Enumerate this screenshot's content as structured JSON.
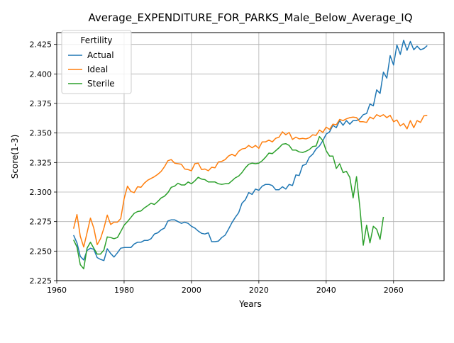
{
  "chart_data": {
    "type": "line",
    "title": "Average_EXPENDITURE_FOR_PARKS_Male_Below_Average_IQ",
    "xlabel": "Years",
    "ylabel": "Score(1-3)",
    "xlim": [
      1960,
      2075
    ],
    "ylim": [
      2.225,
      2.435
    ],
    "xticks": [
      1960,
      1980,
      2000,
      2020,
      2040,
      2060
    ],
    "xtick_labels": [
      "1960",
      "1980",
      "2000",
      "2020",
      "2040",
      "2060"
    ],
    "yticks": [
      2.225,
      2.25,
      2.275,
      2.3,
      2.325,
      2.35,
      2.375,
      2.4,
      2.425
    ],
    "ytick_labels": [
      "2.225",
      "2.250",
      "2.275",
      "2.300",
      "2.325",
      "2.350",
      "2.375",
      "2.400",
      "2.425"
    ],
    "grid": true,
    "legend": {
      "title": "Fertility",
      "position": "upper left"
    },
    "series": [
      {
        "name": "Actual",
        "color": "#1f77b4",
        "x": [
          1965,
          1966,
          1967,
          1968,
          1969,
          1970,
          1971,
          1972,
          1973,
          1974,
          1975,
          1976,
          1977,
          1978,
          1979,
          1980,
          1981,
          1982,
          1983,
          1984,
          1985,
          1986,
          1987,
          1988,
          1989,
          1990,
          1991,
          1992,
          1993,
          1994,
          1995,
          1996,
          1997,
          1998,
          1999,
          2000,
          2001,
          2002,
          2003,
          2004,
          2005,
          2006,
          2007,
          2008,
          2009,
          2010,
          2011,
          2012,
          2013,
          2014,
          2015,
          2016,
          2017,
          2018,
          2019,
          2020,
          2021,
          2022,
          2023,
          2024,
          2025,
          2026,
          2027,
          2028,
          2029,
          2030,
          2031,
          2032,
          2033,
          2034,
          2035,
          2036,
          2037,
          2038,
          2039,
          2040,
          2041,
          2042,
          2043,
          2044,
          2045,
          2046,
          2047,
          2048,
          2049,
          2050,
          2051,
          2052,
          2053,
          2054,
          2055,
          2056,
          2057,
          2058,
          2059,
          2060,
          2061,
          2062,
          2063,
          2064,
          2065,
          2066,
          2067,
          2068,
          2069,
          2070
        ],
        "y": [
          2.2635,
          2.257,
          2.2455,
          2.2425,
          2.2505,
          2.2525,
          2.2515,
          2.2445,
          2.243,
          2.242,
          2.252,
          2.248,
          2.245,
          2.2485,
          2.2525,
          2.253,
          2.253,
          2.253,
          2.256,
          2.2575,
          2.2575,
          2.259,
          2.259,
          2.2605,
          2.2645,
          2.2655,
          2.268,
          2.2695,
          2.2755,
          2.2765,
          2.2765,
          2.275,
          2.2735,
          2.2745,
          2.2735,
          2.271,
          2.2695,
          2.267,
          2.265,
          2.2645,
          2.2655,
          2.258,
          2.258,
          2.2585,
          2.2615,
          2.2635,
          2.2685,
          2.274,
          2.2785,
          2.2825,
          2.2905,
          2.2935,
          2.2995,
          2.298,
          2.3025,
          2.3015,
          2.305,
          2.3065,
          2.3065,
          2.3055,
          2.302,
          2.302,
          2.3045,
          2.3025,
          2.3065,
          2.3055,
          2.3145,
          2.314,
          2.3225,
          2.3235,
          2.3295,
          2.332,
          2.3365,
          2.339,
          2.3435,
          2.349,
          2.351,
          2.3565,
          2.3545,
          2.3605,
          2.3565,
          2.3605,
          2.3575,
          2.3605,
          2.3605,
          2.362,
          2.3655,
          2.3665,
          2.3745,
          2.373,
          2.3865,
          2.3835,
          2.4015,
          2.3965,
          2.4155,
          2.4075,
          2.4245,
          2.4165,
          2.4285,
          2.42,
          2.4275,
          2.4205,
          2.4235,
          2.4205,
          2.4215,
          2.424
        ]
      },
      {
        "name": "Ideal",
        "color": "#ff7f0e",
        "x": [
          1965,
          1966,
          1967,
          1968,
          1969,
          1970,
          1971,
          1972,
          1973,
          1974,
          1975,
          1976,
          1977,
          1978,
          1979,
          1980,
          1981,
          1982,
          1983,
          1984,
          1985,
          1986,
          1987,
          1988,
          1989,
          1990,
          1991,
          1992,
          1993,
          1994,
          1995,
          1996,
          1997,
          1998,
          1999,
          2000,
          2001,
          2002,
          2003,
          2004,
          2005,
          2006,
          2007,
          2008,
          2009,
          2010,
          2011,
          2012,
          2013,
          2014,
          2015,
          2016,
          2017,
          2018,
          2019,
          2020,
          2021,
          2022,
          2023,
          2024,
          2025,
          2026,
          2027,
          2028,
          2029,
          2030,
          2031,
          2032,
          2033,
          2034,
          2035,
          2036,
          2037,
          2038,
          2039,
          2040,
          2041,
          2042,
          2043,
          2044,
          2045,
          2046,
          2047,
          2048,
          2049,
          2050,
          2051,
          2052,
          2053,
          2054,
          2055,
          2056,
          2057,
          2058,
          2059,
          2060,
          2061,
          2062,
          2063,
          2064,
          2065,
          2066,
          2067,
          2068,
          2069,
          2070
        ],
        "y": [
          2.269,
          2.281,
          2.2625,
          2.2535,
          2.2655,
          2.278,
          2.2695,
          2.2555,
          2.2605,
          2.2695,
          2.2805,
          2.2725,
          2.2745,
          2.2745,
          2.2775,
          2.2945,
          2.305,
          2.3005,
          2.2995,
          2.3045,
          2.304,
          2.3075,
          2.31,
          2.3115,
          2.313,
          2.315,
          2.3175,
          2.3215,
          2.3265,
          2.3275,
          2.3245,
          2.324,
          2.3235,
          2.3195,
          2.319,
          2.318,
          2.324,
          2.3245,
          2.319,
          2.3195,
          2.318,
          2.321,
          2.3205,
          2.3255,
          2.326,
          2.3275,
          2.3305,
          2.332,
          2.3305,
          2.3345,
          2.3365,
          2.337,
          2.3395,
          2.3375,
          2.3395,
          2.337,
          2.3425,
          2.3425,
          2.344,
          2.3425,
          2.3455,
          2.3465,
          2.351,
          2.3485,
          2.3505,
          2.3445,
          2.3465,
          2.345,
          2.3455,
          2.345,
          2.346,
          2.3485,
          2.348,
          2.3525,
          2.3505,
          2.355,
          2.353,
          2.3575,
          2.357,
          2.3615,
          2.3605,
          2.362,
          2.363,
          2.3635,
          2.363,
          2.3595,
          2.3595,
          2.359,
          2.3635,
          2.362,
          2.3655,
          2.364,
          2.3655,
          2.363,
          2.365,
          2.3595,
          2.361,
          2.356,
          2.358,
          2.3535,
          2.3605,
          2.3545,
          2.3605,
          2.359,
          2.3645,
          2.365
        ]
      },
      {
        "name": "Sterile",
        "color": "#2ca02c",
        "x": [
          1965,
          1966,
          1967,
          1968,
          1969,
          1970,
          1971,
          1972,
          1973,
          1974,
          1975,
          1976,
          1977,
          1978,
          1979,
          1980,
          1981,
          1982,
          1983,
          1984,
          1985,
          1986,
          1987,
          1988,
          1989,
          1990,
          1991,
          1992,
          1993,
          1994,
          1995,
          1996,
          1997,
          1998,
          1999,
          2000,
          2001,
          2002,
          2003,
          2004,
          2005,
          2006,
          2007,
          2008,
          2009,
          2010,
          2011,
          2012,
          2013,
          2014,
          2015,
          2016,
          2017,
          2018,
          2019,
          2020,
          2021,
          2022,
          2023,
          2024,
          2025,
          2026,
          2027,
          2028,
          2029,
          2030,
          2031,
          2032,
          2033,
          2034,
          2035,
          2036,
          2037,
          2038,
          2039,
          2040,
          2041,
          2042,
          2043,
          2044,
          2045,
          2046,
          2047,
          2048,
          2049,
          2050,
          2051,
          2052,
          2053,
          2054,
          2055,
          2056,
          2057
        ],
        "y": [
          2.2595,
          2.2535,
          2.2385,
          2.235,
          2.2525,
          2.2575,
          2.2525,
          2.2475,
          2.2475,
          2.251,
          2.262,
          2.2615,
          2.2605,
          2.2615,
          2.2665,
          2.272,
          2.275,
          2.2785,
          2.282,
          2.2835,
          2.284,
          2.2865,
          2.2885,
          2.2905,
          2.2895,
          2.292,
          2.295,
          2.2965,
          2.2995,
          2.304,
          2.305,
          2.3075,
          2.306,
          2.306,
          2.3085,
          2.307,
          2.3095,
          2.3125,
          2.311,
          2.3105,
          2.3085,
          2.3085,
          2.3085,
          2.307,
          2.3065,
          2.307,
          2.307,
          2.3095,
          2.312,
          2.3135,
          2.3165,
          2.3205,
          2.3235,
          2.3245,
          2.324,
          2.3245,
          2.3265,
          2.3295,
          2.333,
          2.3325,
          2.335,
          2.3375,
          2.3405,
          2.341,
          2.3395,
          2.3355,
          2.3355,
          2.334,
          2.3335,
          2.3345,
          2.336,
          2.3385,
          2.339,
          2.347,
          2.3435,
          2.335,
          2.3305,
          2.3305,
          2.32,
          2.324,
          2.3165,
          2.3175,
          2.3125,
          2.295,
          2.313,
          2.287,
          2.255,
          2.272,
          2.257,
          2.271,
          2.2685,
          2.26,
          2.279
        ]
      }
    ]
  }
}
